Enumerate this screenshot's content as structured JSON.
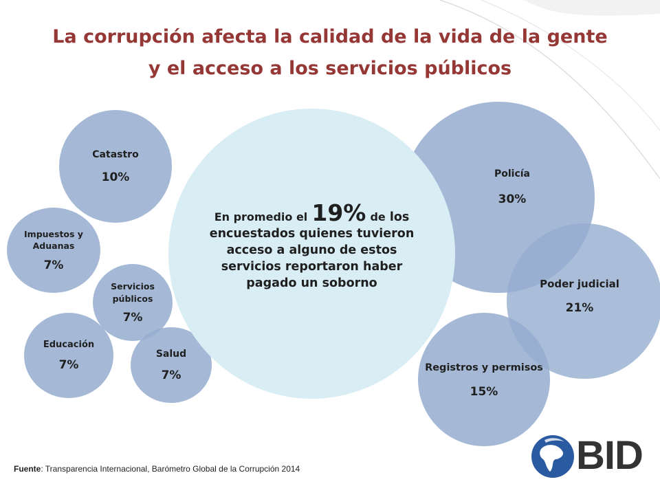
{
  "title": {
    "line1": "La corrupción afecta la calidad de la vida de la gente",
    "line2": "y el acceso a los servicios públicos"
  },
  "center": {
    "prefix": "En promedio el",
    "value": "19%",
    "suffix": "de",
    "rest": "los encuestados quienes tuvieron acceso a alguno de estos servicios reportaron haber pagado un soborno"
  },
  "bubbles": {
    "catastro": {
      "label": "Catastro",
      "value": "10%"
    },
    "impuestos": {
      "label": "Impuestos y Aduanas",
      "value": "7%"
    },
    "servicios": {
      "label": "Servicios públicos",
      "value": "7%"
    },
    "educacion": {
      "label": "Educación",
      "value": "7%"
    },
    "salud": {
      "label": "Salud",
      "value": "7%"
    },
    "policia": {
      "label": "Policía",
      "value": "30%"
    },
    "judicial": {
      "label": "Poder judicial",
      "value": "21%"
    },
    "registros": {
      "label": "Registros y permisos",
      "value": "15%"
    }
  },
  "source": {
    "label": "Fuente",
    "text": ": Transparencia Internacional, Barómetro Global de la Corrupción 2014"
  },
  "logo": {
    "text": "BID"
  },
  "colors": {
    "title": "#953735",
    "bubble": "#95add0",
    "center": "#d9edf4",
    "logo_blue": "#2a5aa0"
  }
}
